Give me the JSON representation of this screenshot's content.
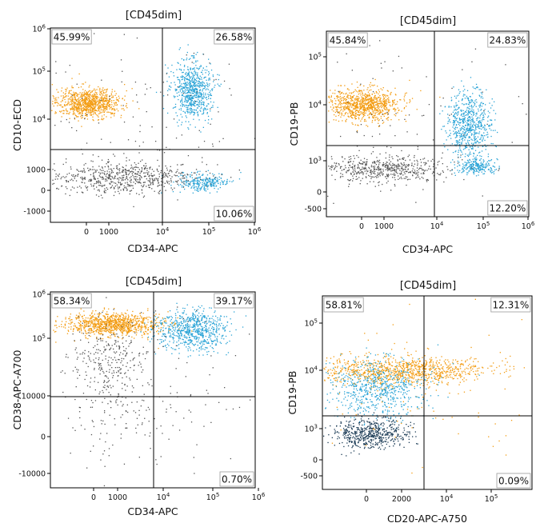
{
  "chart_data": [
    {
      "type": "scatter",
      "title": "[CD45dim]",
      "xlabel": "CD34-APC",
      "ylabel": "CD10-ECD",
      "xticks": [
        {
          "label": "0",
          "sup": ""
        },
        {
          "label": "1000",
          "sup": ""
        },
        {
          "label": "10",
          "sup": "4"
        },
        {
          "label": "10",
          "sup": "5"
        },
        {
          "label": "10",
          "sup": "6"
        }
      ],
      "yticks": [
        {
          "label": "10",
          "sup": "6"
        },
        {
          "label": "10",
          "sup": "5"
        },
        {
          "label": "10",
          "sup": "4"
        },
        {
          "label": "1000",
          "sup": ""
        },
        {
          "label": "0",
          "sup": ""
        },
        {
          "label": "-1000",
          "sup": ""
        }
      ],
      "quadrants": {
        "top_left": "45.99%",
        "top_right": "26.58%",
        "bottom_left": "",
        "bottom_right": "10.06%"
      },
      "populations": [
        {
          "color": "#f39c12",
          "x_range": [
            "-600",
            "2500"
          ],
          "y_range": [
            "1.2e4",
            "3.5e4"
          ]
        },
        {
          "color": "#29a3d6",
          "x_range": [
            "1.2e4",
            "1.5e5"
          ],
          "y_range": [
            "1.5e4",
            "1.2e5"
          ]
        },
        {
          "color": "#29a3d6",
          "x_range": [
            "1.2e4",
            "1.5e5"
          ],
          "y_range": [
            "200",
            "700"
          ]
        },
        {
          "color": "#555555",
          "x_range": [
            "-800",
            "9000"
          ],
          "y_range": [
            "200",
            "1100"
          ]
        }
      ]
    },
    {
      "type": "scatter",
      "title": "[CD45dim]",
      "xlabel": "CD34-APC",
      "ylabel": "CD19-PB",
      "xticks": [
        {
          "label": "0",
          "sup": ""
        },
        {
          "label": "1000",
          "sup": ""
        },
        {
          "label": "10",
          "sup": "4"
        },
        {
          "label": "10",
          "sup": "5"
        },
        {
          "label": "10",
          "sup": "6"
        }
      ],
      "yticks": [
        {
          "label": "10",
          "sup": "5"
        },
        {
          "label": "10",
          "sup": "4"
        },
        {
          "label": "10",
          "sup": "3"
        },
        {
          "label": "0",
          "sup": ""
        },
        {
          "label": "-500",
          "sup": ""
        }
      ],
      "quadrants": {
        "top_left": "45.84%",
        "top_right": "24.83%",
        "bottom_left": "",
        "bottom_right": "12.20%"
      },
      "populations": [
        {
          "color": "#f39c12",
          "x_range": [
            "-600",
            "2500"
          ],
          "y_range": [
            "5e3",
            "2e4"
          ]
        },
        {
          "color": "#29a3d6",
          "x_range": [
            "1.5e4",
            "1.2e5"
          ],
          "y_range": [
            "2e3",
            "1e4"
          ]
        },
        {
          "color": "#29a3d6",
          "x_range": [
            "2e4",
            "1.5e5"
          ],
          "y_range": [
            "400",
            "900"
          ]
        },
        {
          "color": "#555555",
          "x_range": [
            "-800",
            "9000"
          ],
          "y_range": [
            "300",
            "1000"
          ]
        }
      ]
    },
    {
      "type": "scatter",
      "title": "[CD45dim]",
      "xlabel": "CD34-APC",
      "ylabel": "CD38-APC-A700",
      "xticks": [
        {
          "label": "0",
          "sup": ""
        },
        {
          "label": "1000",
          "sup": ""
        },
        {
          "label": "10",
          "sup": "4"
        },
        {
          "label": "10",
          "sup": "5"
        },
        {
          "label": "10",
          "sup": "6"
        }
      ],
      "yticks": [
        {
          "label": "10",
          "sup": "6"
        },
        {
          "label": "10",
          "sup": "5"
        },
        {
          "label": "10000",
          "sup": ""
        },
        {
          "label": "0",
          "sup": ""
        },
        {
          "label": "-10000",
          "sup": ""
        }
      ],
      "quadrants": {
        "top_left": "58.34%",
        "top_right": "39.17%",
        "bottom_left": "",
        "bottom_right": "0.70%"
      },
      "populations": [
        {
          "color": "#f39c12",
          "x_range": [
            "-600",
            "3000"
          ],
          "y_range": [
            "1.1e5",
            "2.2e5"
          ]
        },
        {
          "color": "#29a3d6",
          "x_range": [
            "1e4",
            "1.2e5"
          ],
          "y_range": [
            "6e4",
            "2e5"
          ]
        },
        {
          "color": "#555555",
          "x_range": [
            "-800",
            "5000"
          ],
          "y_range": [
            "5000",
            "8e4"
          ]
        }
      ]
    },
    {
      "type": "scatter",
      "title": "[CD45dim]",
      "xlabel": "CD20-APC-A750",
      "ylabel": "CD19-PB",
      "xticks": [
        {
          "label": "0",
          "sup": ""
        },
        {
          "label": "2000",
          "sup": ""
        },
        {
          "label": "10",
          "sup": "4"
        },
        {
          "label": "10",
          "sup": "5"
        }
      ],
      "yticks": [
        {
          "label": "10",
          "sup": "5"
        },
        {
          "label": "10",
          "sup": "4"
        },
        {
          "label": "10",
          "sup": "3"
        },
        {
          "label": "0",
          "sup": ""
        },
        {
          "label": "-500",
          "sup": ""
        }
      ],
      "quadrants": {
        "top_left": "58.81%",
        "top_right": "12.31%",
        "bottom_left": "",
        "bottom_right": "0.09%"
      },
      "populations": [
        {
          "color": "#f39c12",
          "x_range": [
            "-700",
            "5e4"
          ],
          "y_range": [
            "7e3",
            "1.4e4"
          ]
        },
        {
          "color": "#29a3d6",
          "x_range": [
            "-700",
            "4000"
          ],
          "y_range": [
            "2e3",
            "8e3"
          ]
        },
        {
          "color": "#1b3b55",
          "x_range": [
            "-600",
            "3000"
          ],
          "y_range": [
            "300",
            "900"
          ]
        }
      ]
    }
  ]
}
